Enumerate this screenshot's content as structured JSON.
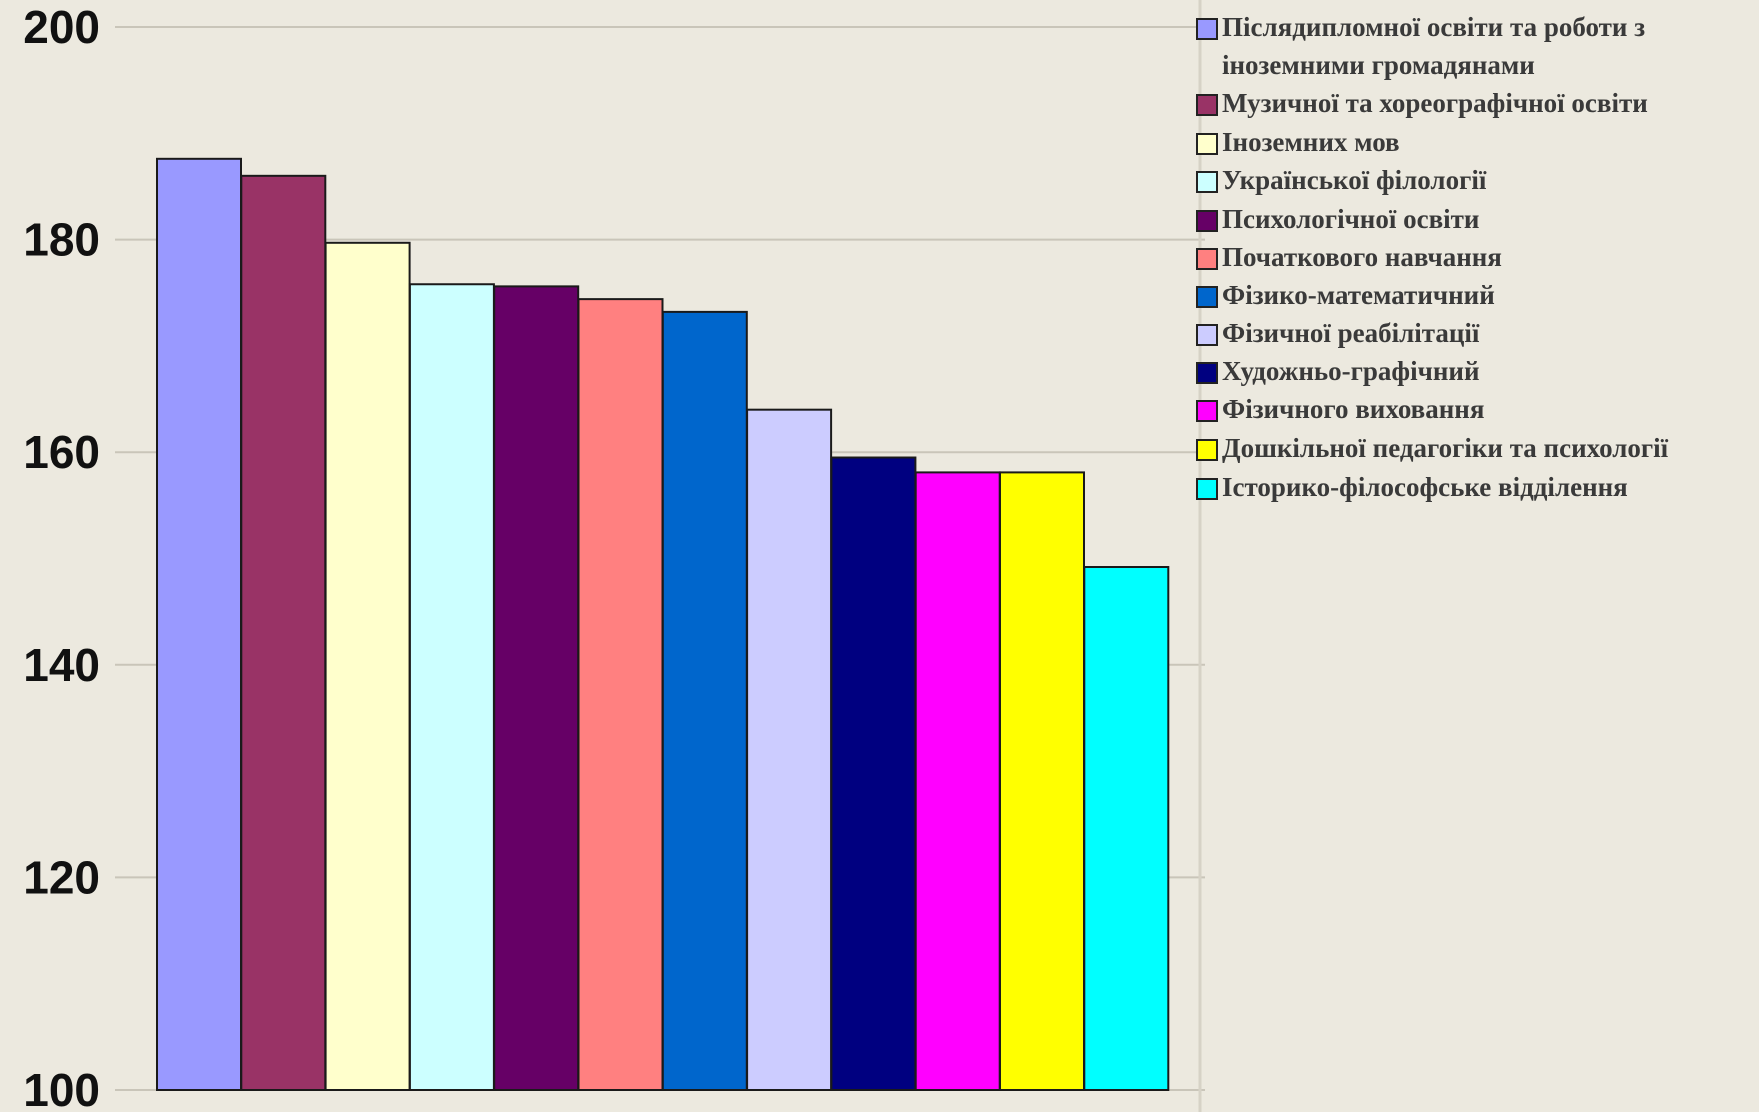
{
  "chart_data": {
    "type": "bar",
    "title": "",
    "xlabel": "",
    "ylabel": "",
    "ylim": [
      100,
      200
    ],
    "yticks": [
      "100",
      "120",
      "140",
      "160",
      "180",
      "200"
    ],
    "grid": true,
    "legend_position": "right",
    "categories": [
      "Післядипломної освіти та роботи з іноземними громадянами",
      "Музичної та хореографічної освіти",
      "Іноземних мов",
      "Української філології",
      "Психологічної освіти",
      "Початкового навчання",
      "Фізико-математичний",
      "Фізичної реабілітації",
      "Художньо-графічний",
      "Фізичного виховання",
      "Дошкільної педагогіки та психології",
      "Історико-філософське відділення"
    ],
    "values": [
      187.6,
      186.0,
      179.7,
      175.8,
      175.6,
      174.4,
      173.2,
      164.0,
      159.5,
      158.1,
      158.1,
      149.2
    ],
    "colors": [
      "#9999ff",
      "#993366",
      "#ffffcc",
      "#ccffff",
      "#660066",
      "#ff8080",
      "#0066cc",
      "#ccccff",
      "#000080",
      "#ff00ff",
      "#ffff00",
      "#00ffff"
    ],
    "legend_lines": [
      [
        "Післядипломної освіти та роботи з",
        "іноземними громадянами"
      ],
      [
        "Музичної та хореографічної освіти"
      ],
      [
        "Іноземних мов"
      ],
      [
        "Української філології"
      ],
      [
        "Психологічної освіти"
      ],
      [
        "Початкового навчання"
      ],
      [
        "Фізико-математичний"
      ],
      [
        "Фізичної реабілітації"
      ],
      [
        "Художньо-графічний"
      ],
      [
        "Фізичного виховання"
      ],
      [
        "Дошкільної педагогіки та психології"
      ],
      [
        "Історико-філософське відділення"
      ]
    ]
  }
}
